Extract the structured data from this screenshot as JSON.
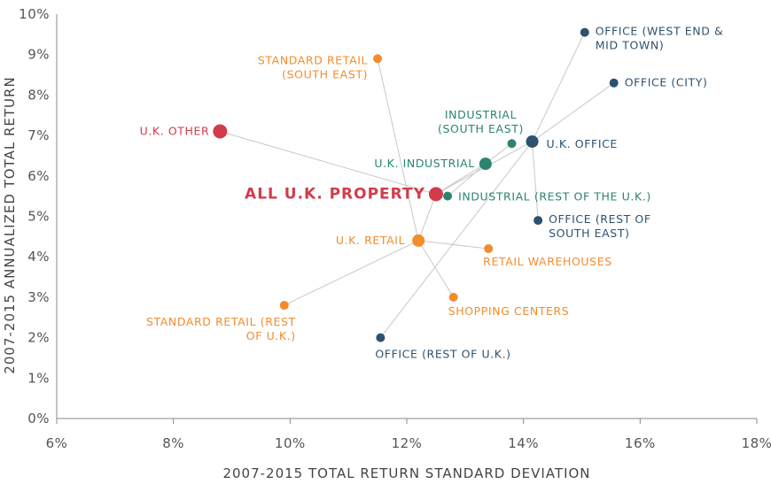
{
  "colors": {
    "office": "#2d5270",
    "industrial": "#2a8470",
    "retail": "#f28c2d",
    "other": "#d23c4a",
    "connector": "#c8c8c8",
    "axis": "#888888"
  },
  "chart_data": {
    "type": "scatter",
    "title": "",
    "xlabel": "2007-2015 TOTAL RETURN STANDARD DEVIATION",
    "ylabel": "2007-2015 ANNUALIZED TOTAL RETURN",
    "xlim": [
      6,
      18
    ],
    "ylim": [
      0,
      10
    ],
    "x_ticks": [
      6,
      8,
      10,
      12,
      14,
      16,
      18
    ],
    "x_tick_labels": [
      "6%",
      "8%",
      "10%",
      "12%",
      "14%",
      "16%",
      "18%"
    ],
    "y_ticks": [
      0,
      1,
      2,
      3,
      4,
      5,
      6,
      7,
      8,
      9,
      10
    ],
    "y_tick_labels": [
      "0%",
      "1%",
      "2%",
      "3%",
      "4%",
      "5%",
      "6%",
      "7%",
      "8%",
      "9%",
      "10%"
    ],
    "grid": false,
    "points": [
      {
        "id": "all-uk-property",
        "lines": [
          "ALL U.K. PROPERTY"
        ],
        "x": 12.5,
        "y": 5.55,
        "group": "other",
        "size": "large",
        "main": true,
        "anchor": "end"
      },
      {
        "id": "uk-other",
        "lines": [
          "U.K. OTHER"
        ],
        "x": 8.8,
        "y": 7.1,
        "group": "other",
        "size": "large",
        "anchor": "end"
      },
      {
        "id": "uk-office",
        "lines": [
          "U.K. OFFICE"
        ],
        "x": 14.15,
        "y": 6.85,
        "group": "office",
        "size": "medium",
        "anchor": "start"
      },
      {
        "id": "office-west-end",
        "lines": [
          "OFFICE (WEST END &",
          "MID TOWN)"
        ],
        "x": 15.05,
        "y": 9.55,
        "group": "office",
        "size": "small",
        "anchor": "start"
      },
      {
        "id": "office-city",
        "lines": [
          "OFFICE (CITY)"
        ],
        "x": 15.55,
        "y": 8.3,
        "group": "office",
        "size": "small",
        "anchor": "start"
      },
      {
        "id": "office-rest-south-east",
        "lines": [
          "OFFICE (REST OF",
          "SOUTH EAST)"
        ],
        "x": 14.25,
        "y": 4.9,
        "group": "office",
        "size": "small",
        "anchor": "start"
      },
      {
        "id": "office-rest-uk",
        "lines": [
          "OFFICE (REST OF U.K.)"
        ],
        "x": 11.55,
        "y": 2.0,
        "group": "office",
        "size": "small",
        "anchor": "start"
      },
      {
        "id": "uk-industrial",
        "lines": [
          "U.K. INDUSTRIAL"
        ],
        "x": 13.35,
        "y": 6.3,
        "group": "industrial",
        "size": "medium",
        "anchor": "end"
      },
      {
        "id": "industrial-south-east",
        "lines": [
          "INDUSTRIAL",
          "(SOUTH EAST)"
        ],
        "x": 13.8,
        "y": 6.8,
        "group": "industrial",
        "size": "small",
        "anchor": "middle"
      },
      {
        "id": "industrial-rest-uk",
        "lines": [
          "INDUSTRIAL (REST OF THE U.K.)"
        ],
        "x": 12.7,
        "y": 5.5,
        "group": "industrial",
        "size": "small",
        "anchor": "start"
      },
      {
        "id": "uk-retail",
        "lines": [
          "U.K. RETAIL"
        ],
        "x": 12.2,
        "y": 4.4,
        "group": "retail",
        "size": "medium",
        "anchor": "end"
      },
      {
        "id": "standard-retail-south-east",
        "lines": [
          "STANDARD RETAIL",
          "(SOUTH EAST)"
        ],
        "x": 11.5,
        "y": 8.9,
        "group": "retail",
        "size": "small",
        "anchor": "end"
      },
      {
        "id": "retail-warehouses",
        "lines": [
          "RETAIL WAREHOUSES"
        ],
        "x": 13.4,
        "y": 4.2,
        "group": "retail",
        "size": "small",
        "anchor": "start"
      },
      {
        "id": "shopping-centers",
        "lines": [
          "SHOPPING CENTERS"
        ],
        "x": 12.8,
        "y": 3.0,
        "group": "retail",
        "size": "small",
        "anchor": "start"
      },
      {
        "id": "standard-retail-rest-uk",
        "lines": [
          "STANDARD RETAIL (REST",
          "OF U.K.)"
        ],
        "x": 9.9,
        "y": 2.8,
        "group": "retail",
        "size": "small",
        "anchor": "end"
      }
    ],
    "connections": [
      [
        "all-uk-property",
        "uk-other"
      ],
      [
        "all-uk-property",
        "uk-office"
      ],
      [
        "all-uk-property",
        "uk-industrial"
      ],
      [
        "all-uk-property",
        "uk-retail"
      ],
      [
        "uk-office",
        "office-west-end"
      ],
      [
        "uk-office",
        "office-city"
      ],
      [
        "uk-office",
        "office-rest-south-east"
      ],
      [
        "uk-office",
        "office-rest-uk"
      ],
      [
        "uk-industrial",
        "industrial-south-east"
      ],
      [
        "uk-industrial",
        "industrial-rest-uk"
      ],
      [
        "uk-retail",
        "standard-retail-south-east"
      ],
      [
        "uk-retail",
        "retail-warehouses"
      ],
      [
        "uk-retail",
        "shopping-centers"
      ],
      [
        "uk-retail",
        "standard-retail-rest-uk"
      ]
    ]
  }
}
